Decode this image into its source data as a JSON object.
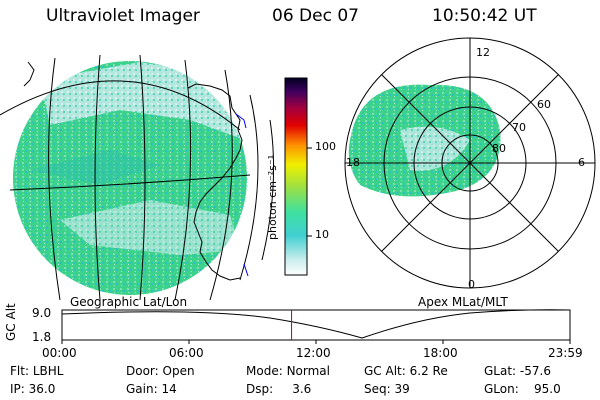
{
  "header": {
    "title": "Ultraviolet Imager",
    "date": "06 Dec 07",
    "time": "10:50:42 UT"
  },
  "colorbar": {
    "unit_label": "photon cm⁻²s⁻¹",
    "ticks": [
      "100",
      "10"
    ]
  },
  "maps": {
    "geo_label": "Geographic Lat/Lon",
    "apex_label": "Apex  MLat/MLT"
  },
  "polar": {
    "mlt_labels": [
      "12",
      "18",
      "6",
      "0"
    ],
    "lat_labels": [
      "60",
      "70",
      "80"
    ]
  },
  "timeline": {
    "ylabel": "GC Alt",
    "y_ticks": [
      "9.0",
      "1.8"
    ],
    "x_ticks": [
      "00:00",
      "06:00",
      "12:00",
      "18:00",
      "23:59"
    ],
    "current_time_fraction": 0.4519
  },
  "info": {
    "flt_label": "Flt:",
    "flt": "LBHL",
    "ip_label": "IP:",
    "ip": "36.0",
    "door_label": "Door:",
    "door": "Open",
    "gain_label": "Gain:",
    "gain": "14",
    "mode_label": "Mode:",
    "mode": "Normal",
    "dsp_label": "Dsp:",
    "dsp": "3.6",
    "gcalt_label": "GC Alt:",
    "gcalt": "6.2 Re",
    "seq_label": "Seq:",
    "seq": "39",
    "glat_label": "GLat:",
    "glat": "-57.6",
    "glon_label": "GLon:",
    "glon": "95.0"
  },
  "colors": {
    "image_base": "#3cd28c",
    "image_light": "#c8ecec",
    "marker": "#cc0000"
  }
}
